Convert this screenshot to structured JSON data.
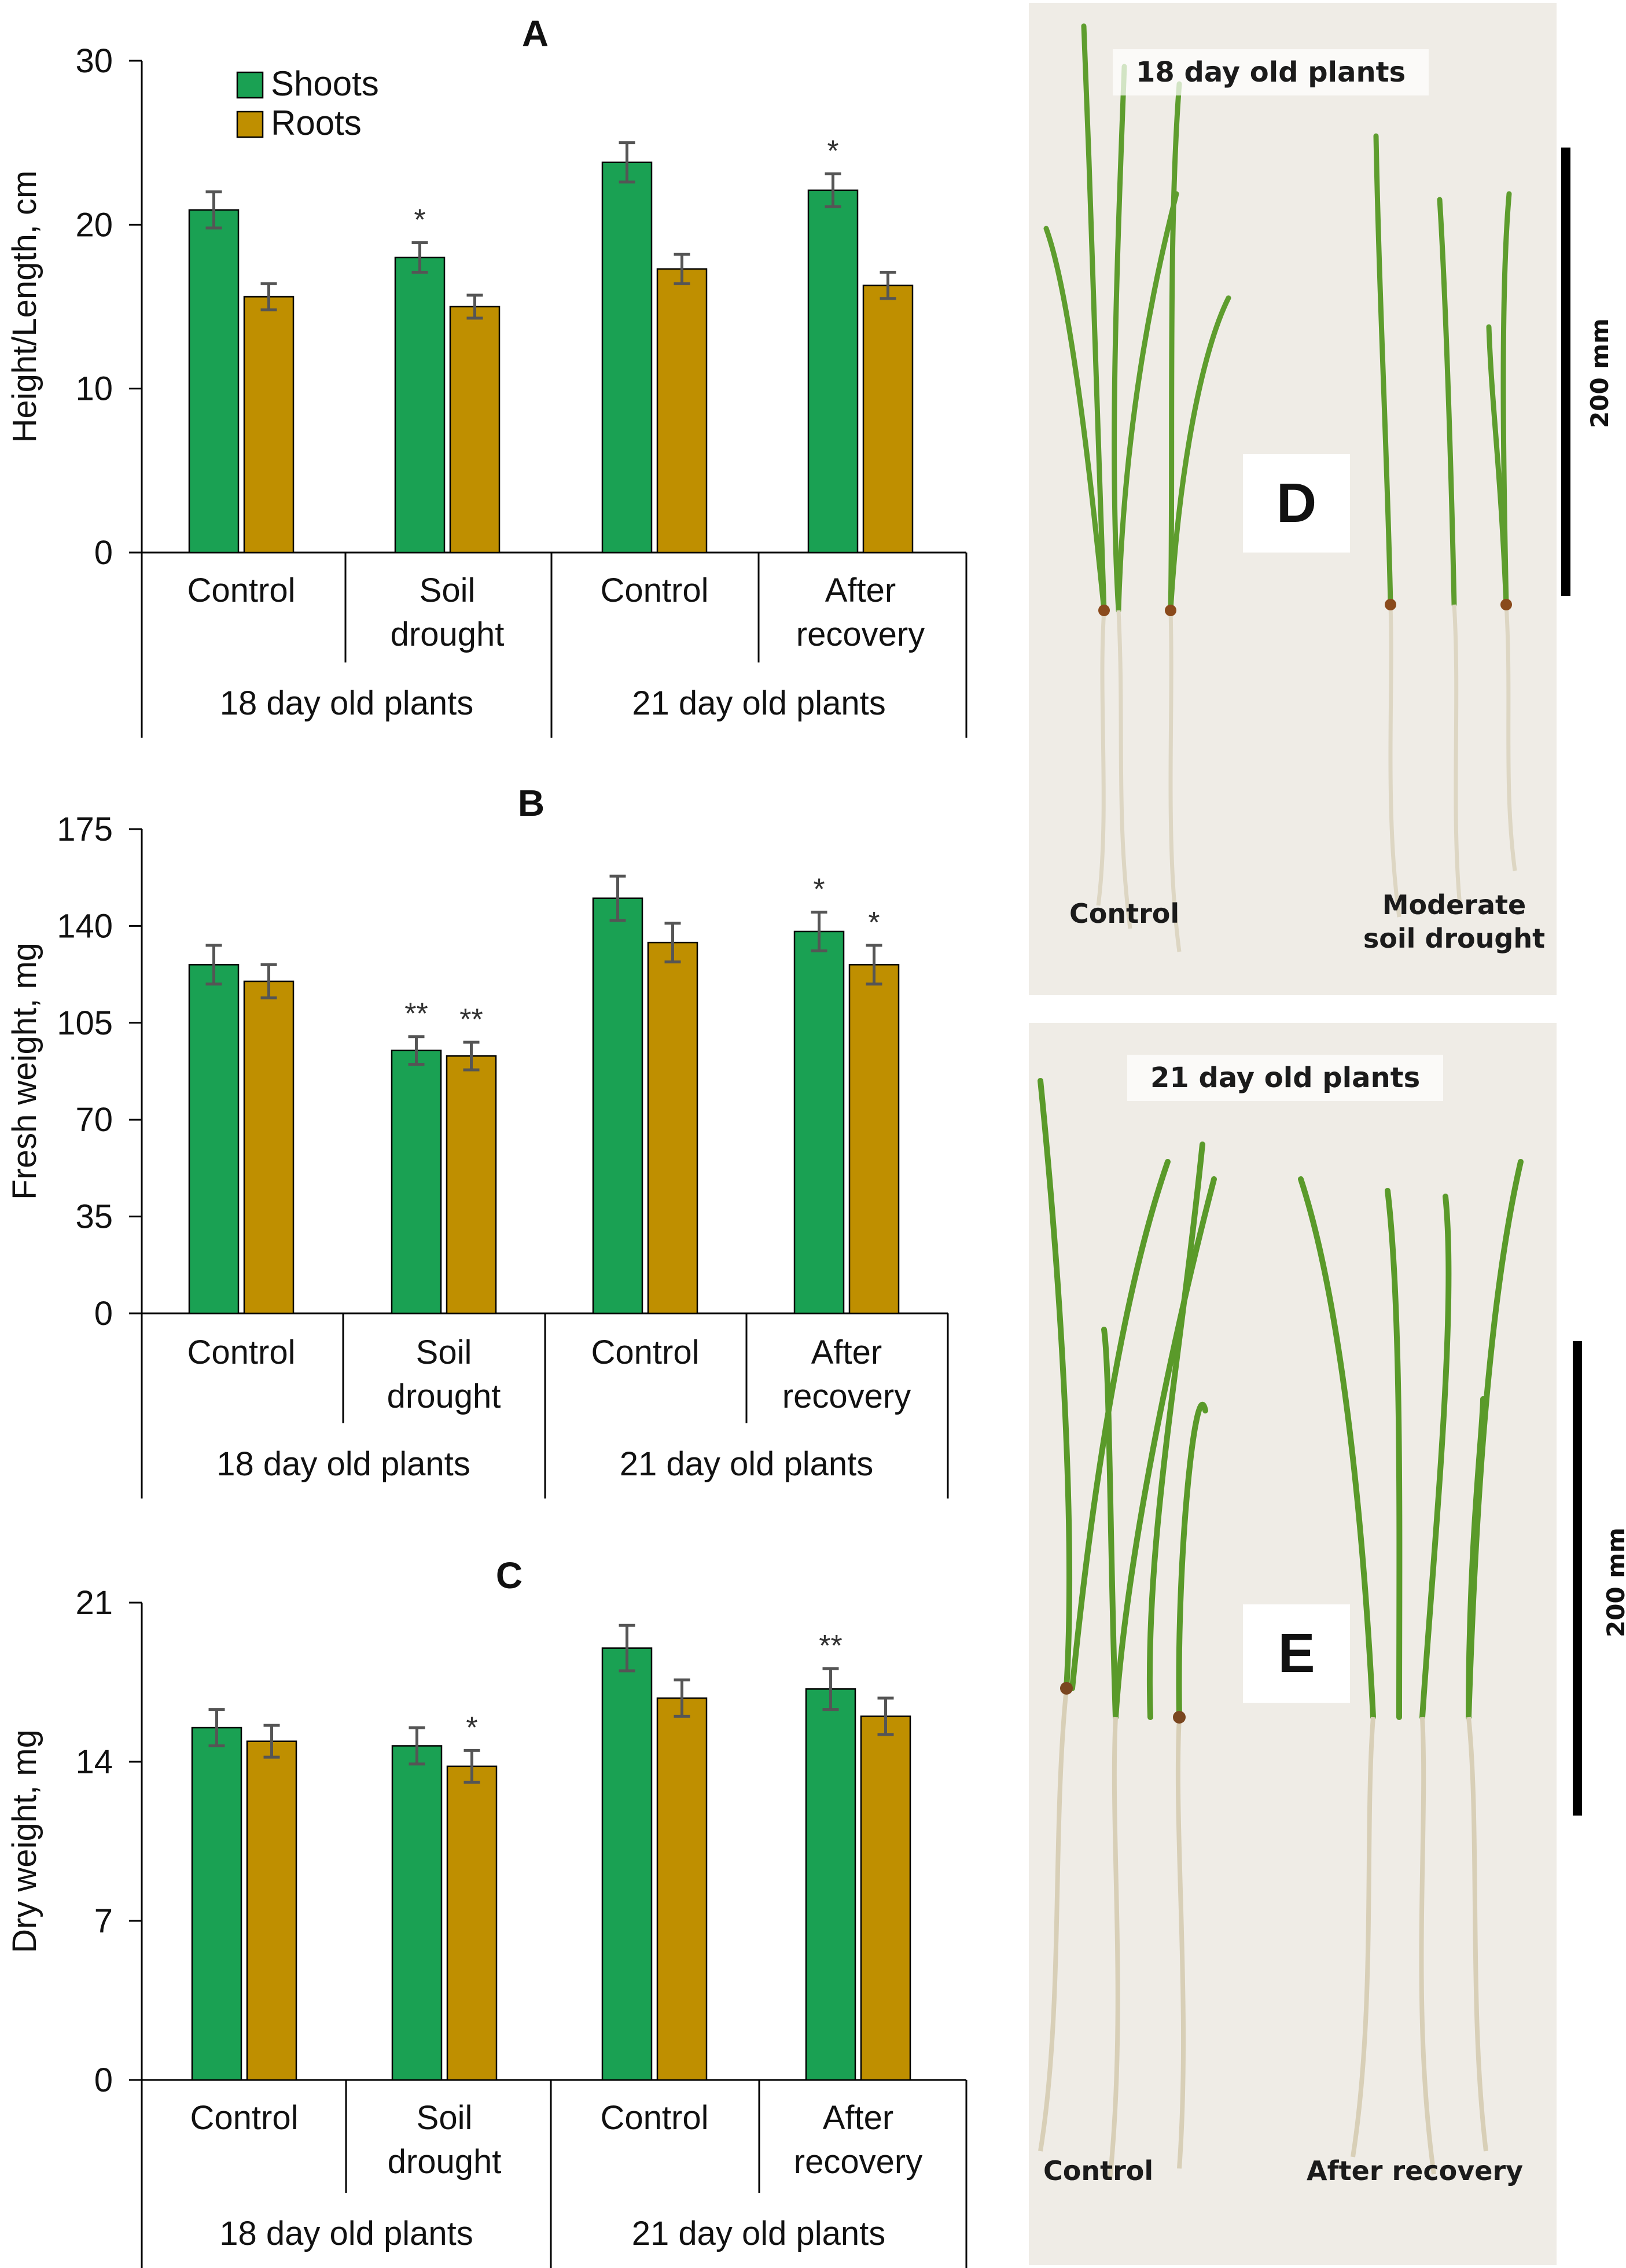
{
  "colors": {
    "shoots": "#1aa153",
    "roots": "#bf8f00",
    "error": "#555555",
    "axis": "#000000"
  },
  "chart_data": [
    {
      "panel": "A",
      "type": "bar",
      "title": "A",
      "ylabel": "Height/Length, cm",
      "ylim": [
        0,
        30
      ],
      "yticks": [
        "0",
        "10",
        "20",
        "30"
      ],
      "legend": {
        "placement": "top-left",
        "entries": [
          "Shoots",
          "Roots"
        ]
      },
      "categories": [
        {
          "label_lines": [
            "Control"
          ]
        },
        {
          "label_lines": [
            "Soil",
            "drought"
          ]
        },
        {
          "label_lines": [
            "Control"
          ]
        },
        {
          "label_lines": [
            "After",
            "recovery"
          ]
        }
      ],
      "groups": [
        "18 day old plants",
        "21 day old plants"
      ],
      "series": [
        {
          "name": "Shoots",
          "values": [
            20.9,
            18.0,
            23.8,
            22.1
          ],
          "errors": [
            1.1,
            0.9,
            1.2,
            1.0
          ],
          "sig": [
            "",
            "*",
            "",
            "*"
          ]
        },
        {
          "name": "Roots",
          "values": [
            15.6,
            15.0,
            17.3,
            16.3
          ],
          "errors": [
            0.8,
            0.7,
            0.9,
            0.8
          ],
          "sig": [
            "",
            "",
            "",
            ""
          ]
        }
      ]
    },
    {
      "panel": "B",
      "type": "bar",
      "title": "B",
      "ylabel": "Fresh weight, mg",
      "ylim": [
        0,
        175
      ],
      "yticks": [
        "0",
        "35",
        "70",
        "105",
        "140",
        "175"
      ],
      "categories": [
        {
          "label_lines": [
            "Control"
          ]
        },
        {
          "label_lines": [
            "Soil",
            "drought"
          ]
        },
        {
          "label_lines": [
            "Control"
          ]
        },
        {
          "label_lines": [
            "After",
            "recovery"
          ]
        }
      ],
      "groups": [
        "18 day old plants",
        "21 day old plants"
      ],
      "series": [
        {
          "name": "Shoots",
          "values": [
            126,
            95,
            150,
            138
          ],
          "errors": [
            7,
            5,
            8,
            7
          ],
          "sig": [
            "",
            "**",
            "",
            "*"
          ]
        },
        {
          "name": "Roots",
          "values": [
            120,
            93,
            134,
            126
          ],
          "errors": [
            6,
            5,
            7,
            7
          ],
          "sig": [
            "",
            "**",
            "",
            "*"
          ]
        }
      ]
    },
    {
      "panel": "C",
      "type": "bar",
      "title": "C",
      "ylabel": "Dry weight, mg",
      "ylim": [
        0,
        21
      ],
      "yticks": [
        "0",
        "7",
        "14",
        "21"
      ],
      "categories": [
        {
          "label_lines": [
            "Control"
          ]
        },
        {
          "label_lines": [
            "Soil",
            "drought"
          ]
        },
        {
          "label_lines": [
            "Control"
          ]
        },
        {
          "label_lines": [
            "After",
            "recovery"
          ]
        }
      ],
      "groups": [
        "18 day old plants",
        "21 day old plants"
      ],
      "series": [
        {
          "name": "Shoots",
          "values": [
            15.5,
            14.7,
            19.0,
            17.2
          ],
          "errors": [
            0.8,
            0.8,
            1.0,
            0.9
          ],
          "sig": [
            "",
            "",
            "",
            "**"
          ]
        },
        {
          "name": "Roots",
          "values": [
            14.9,
            13.8,
            16.8,
            16.0
          ],
          "errors": [
            0.7,
            0.7,
            0.8,
            0.8
          ],
          "sig": [
            "",
            "*",
            "",
            ""
          ]
        }
      ]
    }
  ],
  "photos": {
    "d": {
      "letter": "D",
      "title": "18 day old plants",
      "left_label": "Control",
      "right_label_1": "Moderate",
      "right_label_2": "soil drought",
      "scale": "200 mm"
    },
    "e": {
      "letter": "E",
      "title": "21 day old plants",
      "left_label": "Control",
      "right_label": "After recovery",
      "scale": "200 mm"
    }
  }
}
